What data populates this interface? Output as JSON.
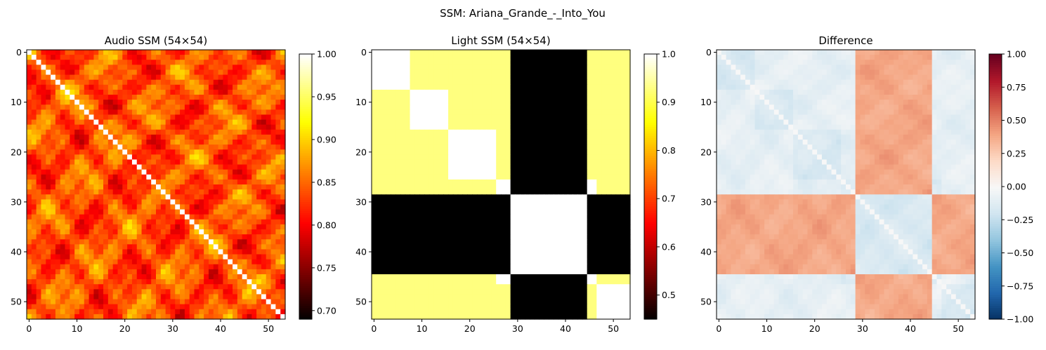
{
  "figure": {
    "suptitle": "SSM: Ariana_Grande_-_Into_You"
  },
  "chart_data": [
    {
      "type": "heatmap",
      "title": "Audio SSM (54×54)",
      "size": 54,
      "xlim": [
        0,
        53
      ],
      "ylim": [
        53,
        0
      ],
      "xticks": [
        "0",
        "10",
        "20",
        "30",
        "40",
        "50"
      ],
      "yticks": [
        "0",
        "10",
        "20",
        "30",
        "40",
        "50"
      ],
      "colormap": "hot",
      "colorbar": {
        "range": [
          0.69,
          1.0
        ],
        "ticks": [
          "0.70",
          "0.75",
          "0.80",
          "0.85",
          "0.90",
          "0.95",
          "1.00"
        ],
        "tick_values": [
          0.7,
          0.75,
          0.8,
          0.85,
          0.9,
          0.95,
          1.0
        ]
      },
      "structure": "diagonal 1.0; mottled off-diagonal similarity ~0.70-0.97",
      "grid": false
    },
    {
      "type": "heatmap",
      "title": "Light SSM (54×54)",
      "size": 54,
      "xlim": [
        0,
        53
      ],
      "ylim": [
        53,
        0
      ],
      "xticks": [
        "0",
        "10",
        "20",
        "30",
        "40",
        "50"
      ],
      "yticks": [
        "0",
        "10",
        "20",
        "30",
        "40",
        "50"
      ],
      "colormap": "hot",
      "colorbar": {
        "range": [
          0.45,
          1.0
        ],
        "ticks": [
          "0.5",
          "0.6",
          "0.7",
          "0.8",
          "0.9",
          "1.0"
        ],
        "tick_values": [
          0.5,
          0.6,
          0.7,
          0.8,
          0.9,
          1.0
        ]
      },
      "segments": [
        [
          0,
          7
        ],
        [
          8,
          15
        ],
        [
          16,
          25
        ],
        [
          26,
          46
        ],
        [
          47,
          53
        ]
      ],
      "structure": "block structure; low-similarity band for frames ~29-44 against frames 0-25 and 47-53",
      "grid": false
    },
    {
      "type": "heatmap",
      "title": "Difference",
      "size": 54,
      "xlim": [
        0,
        53
      ],
      "ylim": [
        53,
        0
      ],
      "xticks": [
        "0",
        "10",
        "20",
        "30",
        "40",
        "50"
      ],
      "yticks": [
        "0",
        "10",
        "20",
        "30",
        "40",
        "50"
      ],
      "colormap": "RdBu_r",
      "colorbar": {
        "range": [
          -1.0,
          1.0
        ],
        "ticks": [
          "−1.00",
          "−0.75",
          "−0.50",
          "−0.25",
          "0.00",
          "0.25",
          "0.50",
          "0.75",
          "1.00"
        ],
        "tick_values": [
          -1.0,
          -0.75,
          -0.5,
          -0.25,
          0.0,
          0.25,
          0.5,
          0.75,
          1.0
        ]
      },
      "structure": "audio minus light; positive ~0.3 where light is low, slightly negative elsewhere",
      "grid": false
    }
  ]
}
